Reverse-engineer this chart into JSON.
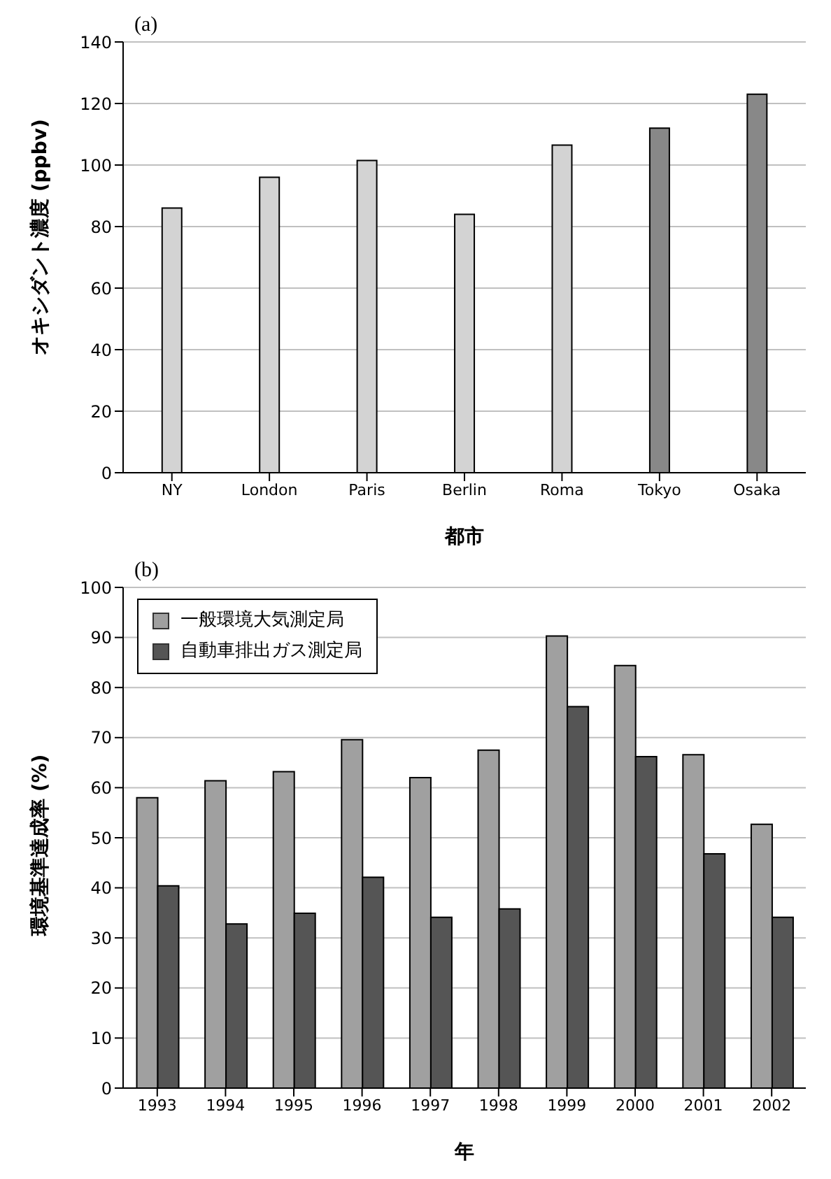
{
  "chart_data": [
    {
      "type": "bar",
      "title": "(a)",
      "xlabel": "都市",
      "ylabel": "オキシダント濃度 (ppbv)",
      "categories": [
        "NY",
        "London",
        "Paris",
        "Berlin",
        "Roma",
        "Tokyo",
        "Osaka"
      ],
      "values": [
        86,
        96,
        101.5,
        84,
        106.5,
        112,
        123
      ],
      "colors": [
        "#d3d3d3",
        "#d3d3d3",
        "#d3d3d3",
        "#d3d3d3",
        "#d3d3d3",
        "#888888",
        "#888888"
      ],
      "ylim": [
        0,
        140
      ],
      "yticks": [
        0,
        20,
        40,
        60,
        80,
        100,
        120,
        140
      ],
      "grid": "y",
      "legend": false
    },
    {
      "type": "bar",
      "title": "(b)",
      "xlabel": "年",
      "ylabel": "環境基準達成率 (%)",
      "categories": [
        "1993",
        "1994",
        "1995",
        "1996",
        "1997",
        "1998",
        "1999",
        "2000",
        "2001",
        "2002"
      ],
      "series": [
        {
          "name": "一般環境大気測定局",
          "color": "#a0a0a0",
          "values": [
            58,
            61.4,
            63.2,
            69.6,
            62,
            67.5,
            90.3,
            84.4,
            66.6,
            52.7
          ]
        },
        {
          "name": "自動車排出ガス測定局",
          "color": "#555555",
          "values": [
            40.4,
            32.8,
            34.9,
            42.1,
            34.1,
            35.8,
            76.2,
            66.2,
            46.8,
            34.1
          ]
        }
      ],
      "ylim": [
        0,
        100
      ],
      "yticks": [
        0,
        10,
        20,
        30,
        40,
        50,
        60,
        70,
        80,
        90,
        100
      ],
      "grid": "y",
      "legend": "top left"
    }
  ]
}
